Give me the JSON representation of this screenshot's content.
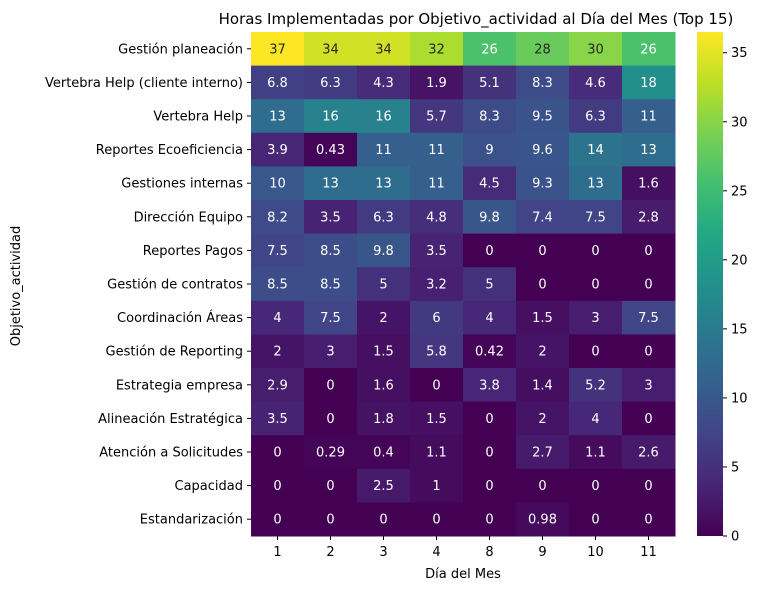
{
  "chart_data": {
    "type": "heatmap",
    "title": "Horas Implementadas por Objetivo_actividad al Día del Mes (Top 15)",
    "xlabel": "Día del Mes",
    "ylabel": "Objetivo_actividad",
    "x_categories": [
      "1",
      "2",
      "3",
      "4",
      "8",
      "9",
      "10",
      "11"
    ],
    "y_categories": [
      "Gestión planeación",
      "Vertebra Help (cliente interno)",
      "Vertebra Help",
      "Reportes Ecoeficiencia",
      "Gestiones internas",
      "Dirección Equipo",
      "Reportes Pagos",
      "Gestión de contratos",
      "Coordinación Áreas",
      "Gestión de Reporting",
      "Estrategia empresa",
      "Alineación Estratégica",
      "Atención a Solicitudes",
      "Capacidad",
      "Estandarización"
    ],
    "values": [
      [
        37,
        34,
        34,
        32,
        26,
        28,
        30,
        26
      ],
      [
        6.8,
        6.3,
        4.3,
        1.9,
        5.1,
        8.3,
        4.6,
        18
      ],
      [
        13,
        16,
        16,
        5.7,
        8.3,
        9.5,
        6.3,
        11
      ],
      [
        3.9,
        0.43,
        11,
        11,
        9,
        9.6,
        14,
        13
      ],
      [
        10,
        13,
        13,
        11,
        4.5,
        9.3,
        13,
        1.6
      ],
      [
        8.2,
        3.5,
        6.3,
        4.8,
        9.8,
        7.4,
        7.5,
        2.8
      ],
      [
        7.5,
        8.5,
        9.8,
        3.5,
        0,
        0,
        0,
        0
      ],
      [
        8.5,
        8.5,
        5,
        3.2,
        5,
        0,
        0,
        0
      ],
      [
        4,
        7.5,
        2,
        6,
        4,
        1.5,
        3,
        7.5
      ],
      [
        2,
        3,
        1.5,
        5.8,
        0.42,
        2,
        0,
        0
      ],
      [
        2.9,
        0,
        1.6,
        0,
        3.8,
        1.4,
        5.2,
        3
      ],
      [
        3.5,
        0,
        1.8,
        1.5,
        0,
        2,
        4,
        0
      ],
      [
        0,
        0.29,
        0.4,
        1.1,
        0,
        2.7,
        1.1,
        2.6
      ],
      [
        0,
        0,
        2.5,
        1,
        0,
        0,
        0,
        0
      ],
      [
        0,
        0,
        0,
        0,
        0,
        0.98,
        0,
        0
      ]
    ],
    "labels": [
      [
        "37",
        "34",
        "34",
        "32",
        "26",
        "28",
        "30",
        "26"
      ],
      [
        "6.8",
        "6.3",
        "4.3",
        "1.9",
        "5.1",
        "8.3",
        "4.6",
        "18"
      ],
      [
        "13",
        "16",
        "16",
        "5.7",
        "8.3",
        "9.5",
        "6.3",
        "11"
      ],
      [
        "3.9",
        "0.43",
        "11",
        "11",
        "9",
        "9.6",
        "14",
        "13"
      ],
      [
        "10",
        "13",
        "13",
        "11",
        "4.5",
        "9.3",
        "13",
        "1.6"
      ],
      [
        "8.2",
        "3.5",
        "6.3",
        "4.8",
        "9.8",
        "7.4",
        "7.5",
        "2.8"
      ],
      [
        "7.5",
        "8.5",
        "9.8",
        "3.5",
        "0",
        "0",
        "0",
        "0"
      ],
      [
        "8.5",
        "8.5",
        "5",
        "3.2",
        "5",
        "0",
        "0",
        "0"
      ],
      [
        "4",
        "7.5",
        "2",
        "6",
        "4",
        "1.5",
        "3",
        "7.5"
      ],
      [
        "2",
        "3",
        "1.5",
        "5.8",
        "0.42",
        "2",
        "0",
        "0"
      ],
      [
        "2.9",
        "0",
        "1.6",
        "0",
        "3.8",
        "1.4",
        "5.2",
        "3"
      ],
      [
        "3.5",
        "0",
        "1.8",
        "1.5",
        "0",
        "2",
        "4",
        "0"
      ],
      [
        "0",
        "0.29",
        "0.4",
        "1.1",
        "0",
        "2.7",
        "1.1",
        "2.6"
      ],
      [
        "0",
        "0",
        "2.5",
        "1",
        "0",
        "0",
        "0",
        "0"
      ],
      [
        "0",
        "0",
        "0",
        "0",
        "0",
        "0.98",
        "0",
        "0"
      ]
    ],
    "colormap": "viridis",
    "vmin": 0,
    "vmax": 36.5,
    "colorbar_ticks": [
      0,
      5,
      10,
      15,
      20,
      25,
      30,
      35
    ],
    "colorbar_tick_labels": [
      "0",
      "5",
      "10",
      "15",
      "20",
      "25",
      "30",
      "35"
    ],
    "grid": false
  }
}
